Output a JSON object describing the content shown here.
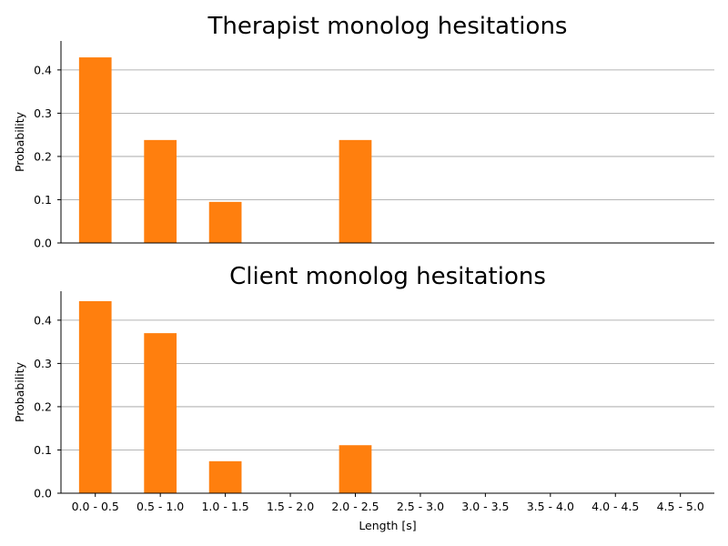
{
  "chart_data": [
    {
      "type": "bar",
      "title": "Therapist monolog hesitations",
      "xlabel": "",
      "ylabel": "Probability",
      "categories": [
        "0.0 - 0.5",
        "0.5 - 1.0",
        "1.0 - 1.5",
        "1.5 - 2.0",
        "2.0 - 2.5",
        "2.5 - 3.0",
        "3.0 - 3.5",
        "3.5 - 4.0",
        "4.0 - 4.5",
        "4.5 - 5.0"
      ],
      "values": [
        0.429,
        0.238,
        0.095,
        0.0,
        0.238,
        0.0,
        0.0,
        0.0,
        0.0,
        0.0
      ],
      "ylim": [
        0,
        0.467
      ],
      "yticks": [
        "0.0",
        "0.1",
        "0.2",
        "0.3",
        "0.4"
      ],
      "grid": "y",
      "show_xticklabels": false,
      "color": "#ff7f0e"
    },
    {
      "type": "bar",
      "title": "Client monolog hesitations",
      "xlabel": "Length [s]",
      "ylabel": "Probability",
      "categories": [
        "0.0 - 0.5",
        "0.5 - 1.0",
        "1.0 - 1.5",
        "1.5 - 2.0",
        "2.0 - 2.5",
        "2.5 - 3.0",
        "3.0 - 3.5",
        "3.5 - 4.0",
        "4.0 - 4.5",
        "4.5 - 5.0"
      ],
      "values": [
        0.444,
        0.37,
        0.074,
        0.0,
        0.111,
        0.0,
        0.0,
        0.0,
        0.0,
        0.0
      ],
      "ylim": [
        0,
        0.467
      ],
      "yticks": [
        "0.0",
        "0.1",
        "0.2",
        "0.3",
        "0.4"
      ],
      "grid": "y",
      "show_xticklabels": true,
      "color": "#ff7f0e"
    }
  ]
}
